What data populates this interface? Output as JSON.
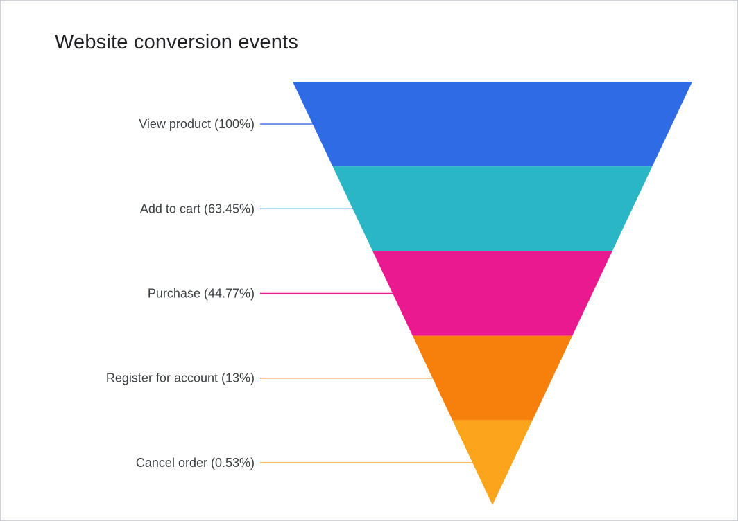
{
  "page": {
    "background": "#ffffff",
    "border_color": "#cdd3d8"
  },
  "chart_data": {
    "type": "funnel",
    "title": "Website conversion events",
    "orientation": "inverted-pyramid",
    "legend_position": "left-leader-lines",
    "grid": false,
    "stages": [
      {
        "name": "View product",
        "percent": 100,
        "label": "View product (100%)",
        "color": "#2E6BE4"
      },
      {
        "name": "Add to cart",
        "percent": 63.45,
        "label": "Add to cart (63.45%)",
        "color": "#2AB6C5"
      },
      {
        "name": "Purchase",
        "percent": 44.77,
        "label": "Purchase (44.77%)",
        "color": "#EB198F"
      },
      {
        "name": "Register for account",
        "percent": 13,
        "label": "Register for account (13%)",
        "color": "#F7800C"
      },
      {
        "name": "Cancel order",
        "percent": 0.53,
        "label": "Cancel order (0.53%)",
        "color": "#FBA41C"
      }
    ]
  }
}
